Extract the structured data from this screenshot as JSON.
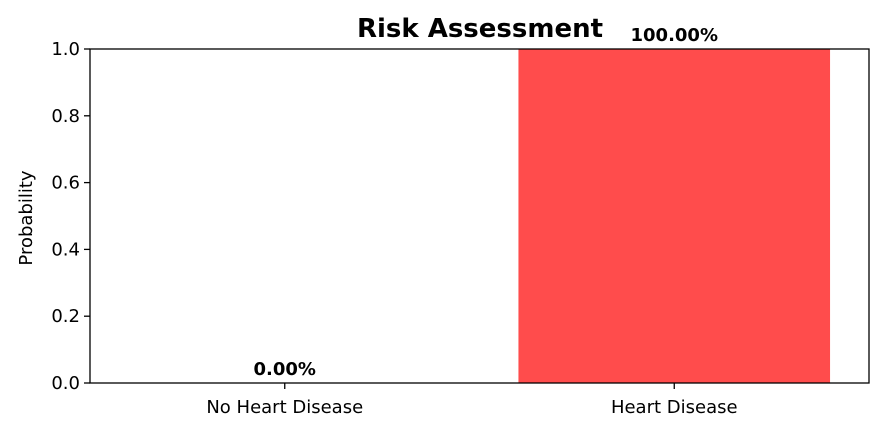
{
  "chart_data": {
    "type": "bar",
    "title": "Risk Assessment",
    "xlabel": "",
    "ylabel": "Probability",
    "categories": [
      "No Heart Disease",
      "Heart Disease"
    ],
    "values": [
      0.0,
      1.0
    ],
    "data_labels": [
      "0.00%",
      "100.00%"
    ],
    "bar_colors": [
      "#4caf50",
      "#ff4c4c"
    ],
    "ylim": [
      0,
      1.0
    ],
    "yticks": [
      "0.0",
      "0.2",
      "0.4",
      "0.6",
      "0.8",
      "1.0"
    ],
    "grid": false,
    "legend": "none"
  }
}
